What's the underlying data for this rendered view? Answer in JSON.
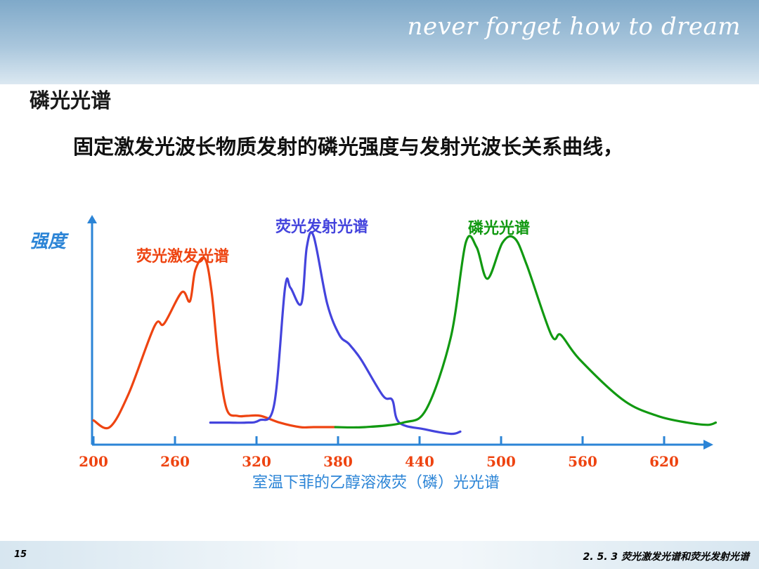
{
  "header": {
    "slogan": "never forget   how to dream"
  },
  "slide": {
    "title": "磷光光谱",
    "description": "固定激发光波长物质发射的磷光强度与发射光波长关系曲线，"
  },
  "footer": {
    "page_number": "15",
    "section": "2. 5. 3  荧光激发光谱和荧光发射光谱"
  },
  "colors": {
    "excitation": "#ee4411",
    "fluorescence": "#4444dd",
    "phosphorescence": "#119911",
    "axis": "#2b84d6"
  },
  "chart_data": {
    "type": "line",
    "ylabel": "强度",
    "xlabel": "室温下菲的乙醇溶液荧（磷）光光谱",
    "xticks": [
      200,
      260,
      320,
      380,
      440,
      500,
      560,
      620
    ],
    "xlim": [
      190,
      660
    ],
    "ylim": [
      0,
      1
    ],
    "series": [
      {
        "name": "荧光激发光谱",
        "x": [
          200,
          212,
          226,
          245,
          252,
          265,
          271,
          275,
          282,
          287,
          292,
          298,
          306,
          313,
          323,
          337,
          352,
          362,
          378
        ],
        "y": [
          0.03,
          0.0,
          0.15,
          0.45,
          0.46,
          0.6,
          0.56,
          0.7,
          0.75,
          0.6,
          0.3,
          0.08,
          0.05,
          0.05,
          0.05,
          0.02,
          0.0,
          0.0,
          0.0
        ]
      },
      {
        "name": "荧光发射光谱",
        "x": [
          286,
          300,
          312,
          322,
          333,
          341,
          345,
          353,
          357,
          362,
          372,
          381,
          388,
          397,
          413,
          420,
          425,
          444,
          463,
          470
        ],
        "y": [
          0.02,
          0.02,
          0.02,
          0.03,
          0.1,
          0.62,
          0.62,
          0.55,
          0.8,
          0.85,
          0.55,
          0.41,
          0.37,
          0.3,
          0.14,
          0.12,
          0.02,
          -0.01,
          -0.03,
          -0.02
        ]
      },
      {
        "name": "磷光光谱",
        "x": [
          378,
          400,
          428,
          445,
          463,
          474,
          482,
          490,
          501,
          510,
          519,
          537,
          544,
          558,
          590,
          615,
          637,
          652,
          658
        ],
        "y": [
          0.0,
          0.0,
          0.02,
          0.08,
          0.4,
          0.82,
          0.8,
          0.66,
          0.82,
          0.84,
          0.72,
          0.41,
          0.41,
          0.3,
          0.12,
          0.05,
          0.02,
          0.01,
          0.02
        ]
      }
    ]
  }
}
